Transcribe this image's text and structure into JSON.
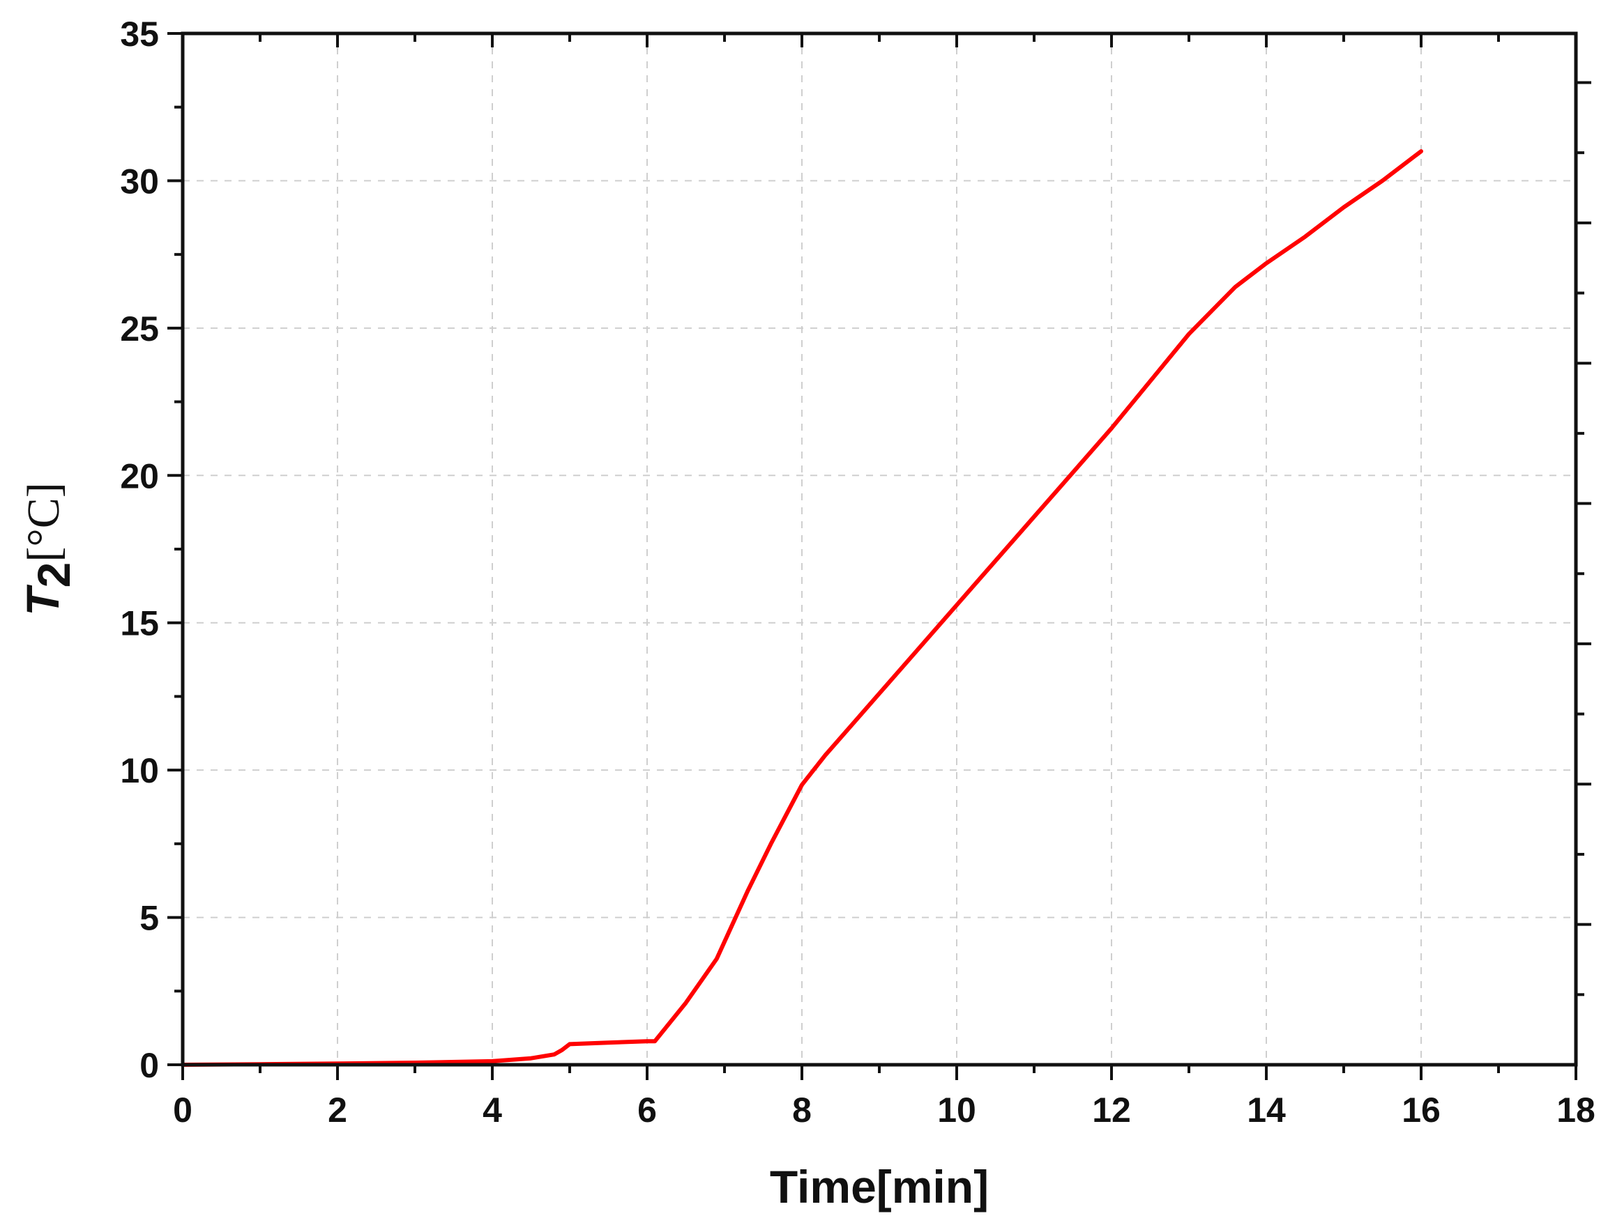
{
  "chart_data": {
    "type": "line",
    "xlabel": "Time[min]",
    "ylabel": {
      "symbol": "T",
      "subscript": "2",
      "unit": "[°C]"
    },
    "xlim": [
      0,
      18
    ],
    "ylim": [
      0,
      35
    ],
    "xticks": [
      "0",
      "2",
      "4",
      "6",
      "8",
      "10",
      "12",
      "14",
      "16",
      "18"
    ],
    "yticks": [
      "0",
      "5",
      "10",
      "15",
      "20",
      "25",
      "30",
      "35"
    ],
    "grid": true,
    "series_color": "#ff0000",
    "series": [
      {
        "x": [
          0,
          1,
          2,
          3,
          4,
          4.5,
          4.8,
          4.9,
          5.0,
          5.5,
          6.0,
          6.1,
          6.5,
          6.9,
          7.3,
          7.6,
          8.0,
          8.3,
          8.7,
          9.0,
          9.5,
          10.0,
          10.5,
          11.0,
          11.5,
          12.0,
          12.5,
          13.0,
          13.6,
          14.0,
          14.5,
          15.0,
          15.5,
          16.0
        ],
        "y": [
          0.0,
          0.02,
          0.04,
          0.07,
          0.12,
          0.22,
          0.35,
          0.5,
          0.7,
          0.75,
          0.8,
          0.8,
          2.1,
          3.6,
          5.9,
          7.5,
          9.5,
          10.5,
          11.7,
          12.6,
          14.1,
          15.6,
          17.1,
          18.6,
          20.1,
          21.6,
          23.2,
          24.8,
          26.4,
          27.2,
          28.1,
          29.1,
          30.0,
          31.0
        ]
      }
    ]
  }
}
